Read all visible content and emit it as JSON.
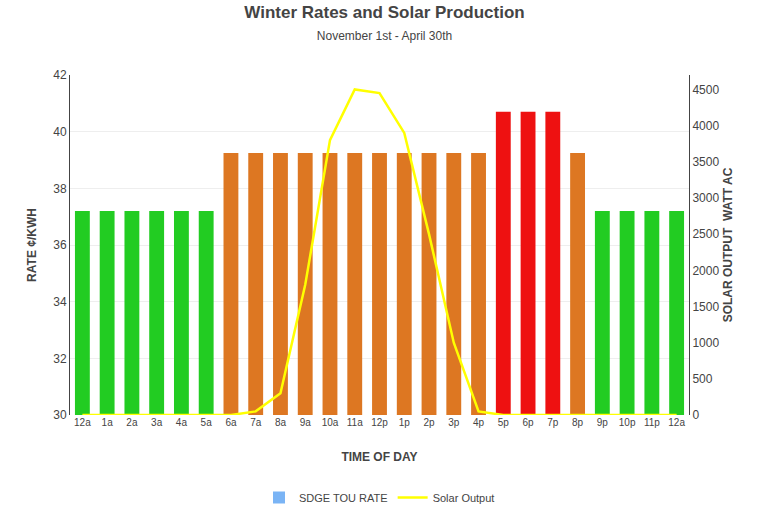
{
  "chart_data": {
    "type": "bar",
    "title": "Winter Rates and Solar Production",
    "subtitle": "November 1st - April 30th",
    "xlabel": "TIME OF DAY",
    "ylabel": "RATE ¢/KWH",
    "y2label": "SOLAR OUTPUT  WATT AC",
    "categories": [
      "12a",
      "1a",
      "2a",
      "3a",
      "4a",
      "5a",
      "6a",
      "7a",
      "8a",
      "9a",
      "10a",
      "11a",
      "12p",
      "1p",
      "2p",
      "3p",
      "4p",
      "5p",
      "6p",
      "7p",
      "8p",
      "9p",
      "10p",
      "11p",
      "12a"
    ],
    "series": [
      {
        "name": "SDGE TOU RATE",
        "type": "bar",
        "color": "#7ab4f5",
        "colors": [
          "#22cc22",
          "#22cc22",
          "#22cc22",
          "#22cc22",
          "#22cc22",
          "#22cc22",
          "#dd7722",
          "#dd7722",
          "#dd7722",
          "#dd7722",
          "#dd7722",
          "#dd7722",
          "#dd7722",
          "#dd7722",
          "#dd7722",
          "#dd7722",
          "#dd7722",
          "#ee1111",
          "#ee1111",
          "#ee1111",
          "#dd7722",
          "#22cc22",
          "#22cc22",
          "#22cc22",
          "#22cc22"
        ],
        "values": [
          37.2,
          37.2,
          37.2,
          37.2,
          37.2,
          37.2,
          39.25,
          39.25,
          39.25,
          39.25,
          39.25,
          39.25,
          39.25,
          39.25,
          39.25,
          39.25,
          39.25,
          40.7,
          40.7,
          40.7,
          39.25,
          37.2,
          37.2,
          37.2,
          37.2
        ]
      },
      {
        "name": "Solar Output",
        "type": "line",
        "color": "#ffff00",
        "axis": "y2",
        "values": [
          0,
          0,
          0,
          0,
          0,
          0,
          0,
          50,
          300,
          1800,
          3800,
          4500,
          4450,
          3900,
          2500,
          1000,
          50,
          0,
          0,
          0,
          0,
          0,
          0,
          0,
          0
        ]
      }
    ],
    "ylim": [
      30,
      42
    ],
    "yticks": [
      30,
      32,
      34,
      36,
      38,
      40,
      42
    ],
    "y2lim": [
      0,
      4700
    ],
    "y2ticks": [
      0,
      500,
      1000,
      1500,
      2000,
      2500,
      3000,
      3500,
      4000,
      4500
    ],
    "grid": true,
    "legend": "bottom"
  }
}
